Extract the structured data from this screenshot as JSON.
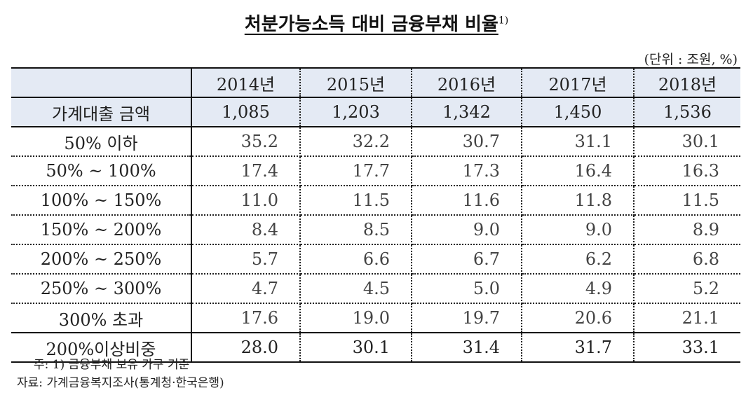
{
  "title": {
    "text": "처분가능소득 대비 금융부채 비율",
    "footnote_mark": "1)"
  },
  "unit": "(단위 : 조원, %)",
  "table": {
    "columns": [
      "",
      "2014년",
      "2015년",
      "2016년",
      "2017년",
      "2018년"
    ],
    "loan_row": {
      "label": "가계대출 금액",
      "values": [
        "1,085",
        "1,203",
        "1,342",
        "1,450",
        "1,536"
      ]
    },
    "rows": [
      {
        "label": "50% 이하",
        "values": [
          "35.2",
          "32.2",
          "30.7",
          "31.1",
          "30.1"
        ]
      },
      {
        "label": "50% ~ 100%",
        "values": [
          "17.4",
          "17.7",
          "17.3",
          "16.4",
          "16.3"
        ]
      },
      {
        "label": "100% ~ 150%",
        "values": [
          "11.0",
          "11.5",
          "11.6",
          "11.8",
          "11.5"
        ]
      },
      {
        "label": "150% ~ 200%",
        "values": [
          "8.4",
          "8.5",
          "9.0",
          "9.0",
          "8.9"
        ]
      },
      {
        "label": "200% ~ 250%",
        "values": [
          "5.7",
          "6.6",
          "6.7",
          "6.2",
          "6.8"
        ]
      },
      {
        "label": "250% ~ 300%",
        "values": [
          "4.7",
          "4.5",
          "5.0",
          "4.9",
          "5.2"
        ]
      },
      {
        "label": "300% 초과",
        "values": [
          "17.6",
          "19.0",
          "19.7",
          "20.6",
          "21.1"
        ]
      }
    ],
    "summary_row": {
      "label": "200%이상비중",
      "values": [
        "28.0",
        "30.1",
        "31.4",
        "31.7",
        "33.1"
      ]
    }
  },
  "notes": {
    "note1": "주: 1) 금융부채 보유 가구 기준",
    "source": "자료: 가계금융복지조사(통계청·한국은행)"
  },
  "colors": {
    "header_bg": "#e4eaf4",
    "rule": "#111111"
  }
}
